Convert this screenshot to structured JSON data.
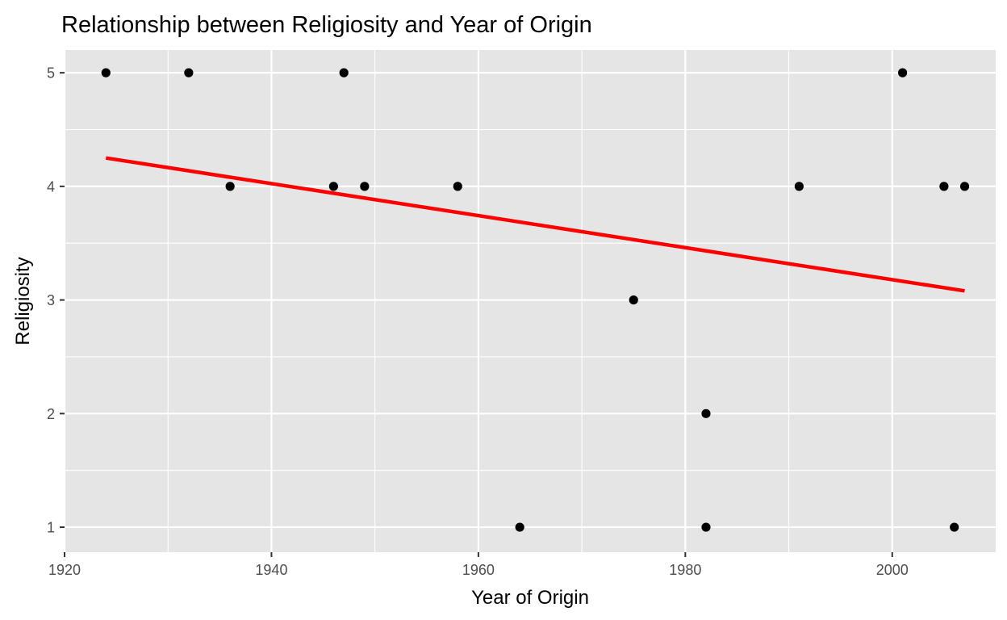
{
  "chart_data": {
    "type": "scatter",
    "title": "Relationship between Religiosity and Year of Origin",
    "xlabel": "Year of Origin",
    "ylabel": "Religiosity",
    "xlim": [
      1920,
      2010
    ],
    "ylim": [
      0.78,
      5.2
    ],
    "x_ticks": [
      1920,
      1940,
      1960,
      1980,
      2000
    ],
    "y_ticks": [
      1,
      2,
      3,
      4,
      5
    ],
    "grid": true,
    "legend": "none",
    "points": [
      {
        "x": 1924,
        "y": 5
      },
      {
        "x": 1932,
        "y": 5
      },
      {
        "x": 1936,
        "y": 4
      },
      {
        "x": 1946,
        "y": 4
      },
      {
        "x": 1947,
        "y": 5
      },
      {
        "x": 1949,
        "y": 4
      },
      {
        "x": 1958,
        "y": 4
      },
      {
        "x": 1964,
        "y": 1
      },
      {
        "x": 1975,
        "y": 3
      },
      {
        "x": 1982,
        "y": 2
      },
      {
        "x": 1982,
        "y": 1
      },
      {
        "x": 1991,
        "y": 4
      },
      {
        "x": 2001,
        "y": 5
      },
      {
        "x": 2005,
        "y": 4
      },
      {
        "x": 2006,
        "y": 1
      },
      {
        "x": 2007,
        "y": 4
      }
    ],
    "trend_line": {
      "type": "linear",
      "x": [
        1924,
        2007
      ],
      "y": [
        4.25,
        3.08
      ]
    },
    "colors": {
      "panel_background": "#e5e5e5",
      "grid": "#ffffff",
      "point": "#000000",
      "trend_line": "#ff0000",
      "text": "#000000",
      "tick_text": "#4d4d4d",
      "tick_mark": "#333333"
    }
  }
}
